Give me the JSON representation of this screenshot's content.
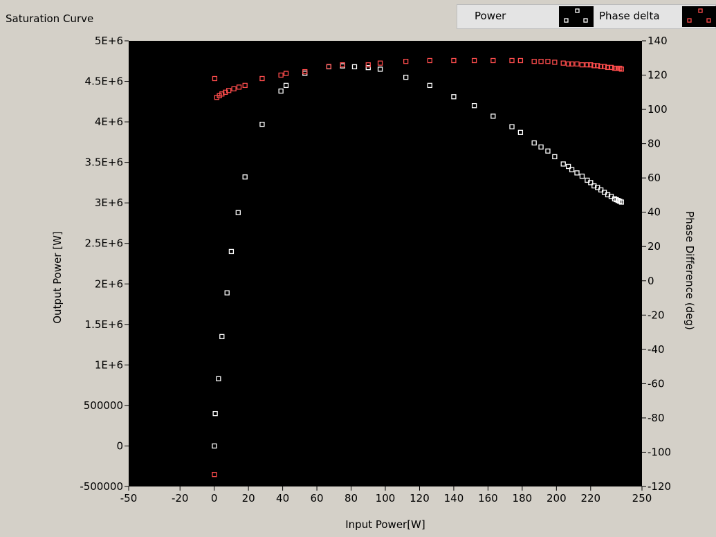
{
  "window": {
    "title": "Saturation Curve"
  },
  "legend": {
    "items": [
      {
        "label": "Power",
        "color": "#ffffff",
        "marker": "square-open"
      },
      {
        "label": "Phase delta",
        "color": "#ff4d4d",
        "marker": "square-open"
      }
    ]
  },
  "chart_data": {
    "type": "scatter",
    "title": "Saturation Curve",
    "xlabel": "Input Power[W]",
    "ylabel": "Output Power [W]",
    "y2label": "Phase Difference (deg)",
    "xlim": [
      -50,
      250
    ],
    "ylim": [
      -500000,
      5000000
    ],
    "y2lim": [
      -120,
      140
    ],
    "grid": false,
    "legend_position": "top-right",
    "background": "#000000",
    "x_ticks": [
      {
        "value": -50,
        "label": "-50"
      },
      {
        "value": -20,
        "label": "-20"
      },
      {
        "value": 0,
        "label": "0"
      },
      {
        "value": 20,
        "label": "20"
      },
      {
        "value": 40,
        "label": "40"
      },
      {
        "value": 60,
        "label": "60"
      },
      {
        "value": 80,
        "label": "80"
      },
      {
        "value": 100,
        "label": "100"
      },
      {
        "value": 120,
        "label": "120"
      },
      {
        "value": 140,
        "label": "140"
      },
      {
        "value": 160,
        "label": "160"
      },
      {
        "value": 180,
        "label": "180"
      },
      {
        "value": 200,
        "label": "200"
      },
      {
        "value": 220,
        "label": "220"
      },
      {
        "value": 250,
        "label": "250"
      }
    ],
    "y_ticks": [
      {
        "value": 5000000,
        "label": "5E+6"
      },
      {
        "value": 4500000,
        "label": "4.5E+6"
      },
      {
        "value": 4000000,
        "label": "4E+6"
      },
      {
        "value": 3500000,
        "label": "3.5E+6"
      },
      {
        "value": 3000000,
        "label": "3E+6"
      },
      {
        "value": 2500000,
        "label": "2.5E+6"
      },
      {
        "value": 2000000,
        "label": "2E+6"
      },
      {
        "value": 1500000,
        "label": "1.5E+6"
      },
      {
        "value": 1000000,
        "label": "1E+6"
      },
      {
        "value": 500000,
        "label": "500000"
      },
      {
        "value": 0,
        "label": "0"
      },
      {
        "value": -500000,
        "label": "-500000"
      }
    ],
    "y2_ticks": [
      {
        "value": 140,
        "label": "140"
      },
      {
        "value": 120,
        "label": "120"
      },
      {
        "value": 100,
        "label": "100"
      },
      {
        "value": 80,
        "label": "80"
      },
      {
        "value": 60,
        "label": "60"
      },
      {
        "value": 40,
        "label": "40"
      },
      {
        "value": 20,
        "label": "20"
      },
      {
        "value": 0,
        "label": "0"
      },
      {
        "value": -20,
        "label": "-20"
      },
      {
        "value": -40,
        "label": "-40"
      },
      {
        "value": -60,
        "label": "-60"
      },
      {
        "value": -80,
        "label": "-80"
      },
      {
        "value": -100,
        "label": "-100"
      },
      {
        "value": -120,
        "label": "-120"
      }
    ],
    "series": [
      {
        "name": "Power",
        "axis": "left",
        "color": "#ffffff",
        "x": [
          0.1,
          0.6,
          2.5,
          4.5,
          7.5,
          10,
          14,
          18,
          28,
          39,
          42,
          53,
          67,
          75,
          82,
          90,
          97,
          112,
          126,
          140,
          152,
          163,
          174,
          179,
          187,
          191,
          195,
          199,
          204,
          207,
          209,
          212,
          215,
          218,
          220,
          222,
          224,
          226,
          228,
          230,
          232,
          234,
          235,
          236,
          237,
          238
        ],
        "y": [
          0,
          400000,
          830000,
          1350000,
          1890000,
          2400000,
          2880000,
          3320000,
          3970000,
          4380000,
          4450000,
          4600000,
          4680000,
          4690000,
          4680000,
          4670000,
          4650000,
          4550000,
          4450000,
          4310000,
          4200000,
          4070000,
          3940000,
          3870000,
          3740000,
          3690000,
          3640000,
          3570000,
          3480000,
          3450000,
          3410000,
          3370000,
          3330000,
          3280000,
          3250000,
          3210000,
          3190000,
          3160000,
          3130000,
          3100000,
          3080000,
          3050000,
          3040000,
          3030000,
          3020000,
          3010000
        ]
      },
      {
        "name": "Phase delta",
        "axis": "right",
        "color": "#ff4d4d",
        "x": [
          0.1,
          0.3,
          1.5,
          3,
          4.5,
          6.5,
          8.5,
          11.5,
          14.5,
          18,
          28,
          39,
          42,
          53,
          67,
          75,
          90,
          97,
          112,
          126,
          140,
          152,
          163,
          174,
          179,
          187,
          191,
          195,
          199,
          204,
          207,
          209,
          212,
          215,
          218,
          220,
          222,
          224,
          226,
          228,
          230,
          232,
          234,
          235,
          236,
          237,
          238
        ],
        "y": [
          -113,
          118,
          107,
          108,
          109,
          110,
          111,
          112,
          113,
          114,
          118,
          120,
          121,
          122,
          125,
          126,
          126,
          127,
          128,
          128.5,
          128.5,
          128.5,
          128.5,
          128.5,
          128.5,
          128,
          128,
          128,
          127.5,
          127,
          126.5,
          126.5,
          126.5,
          126,
          126,
          126,
          125.5,
          125.5,
          125,
          125,
          124.5,
          124.5,
          124,
          124,
          124,
          124,
          123.5
        ]
      }
    ]
  }
}
